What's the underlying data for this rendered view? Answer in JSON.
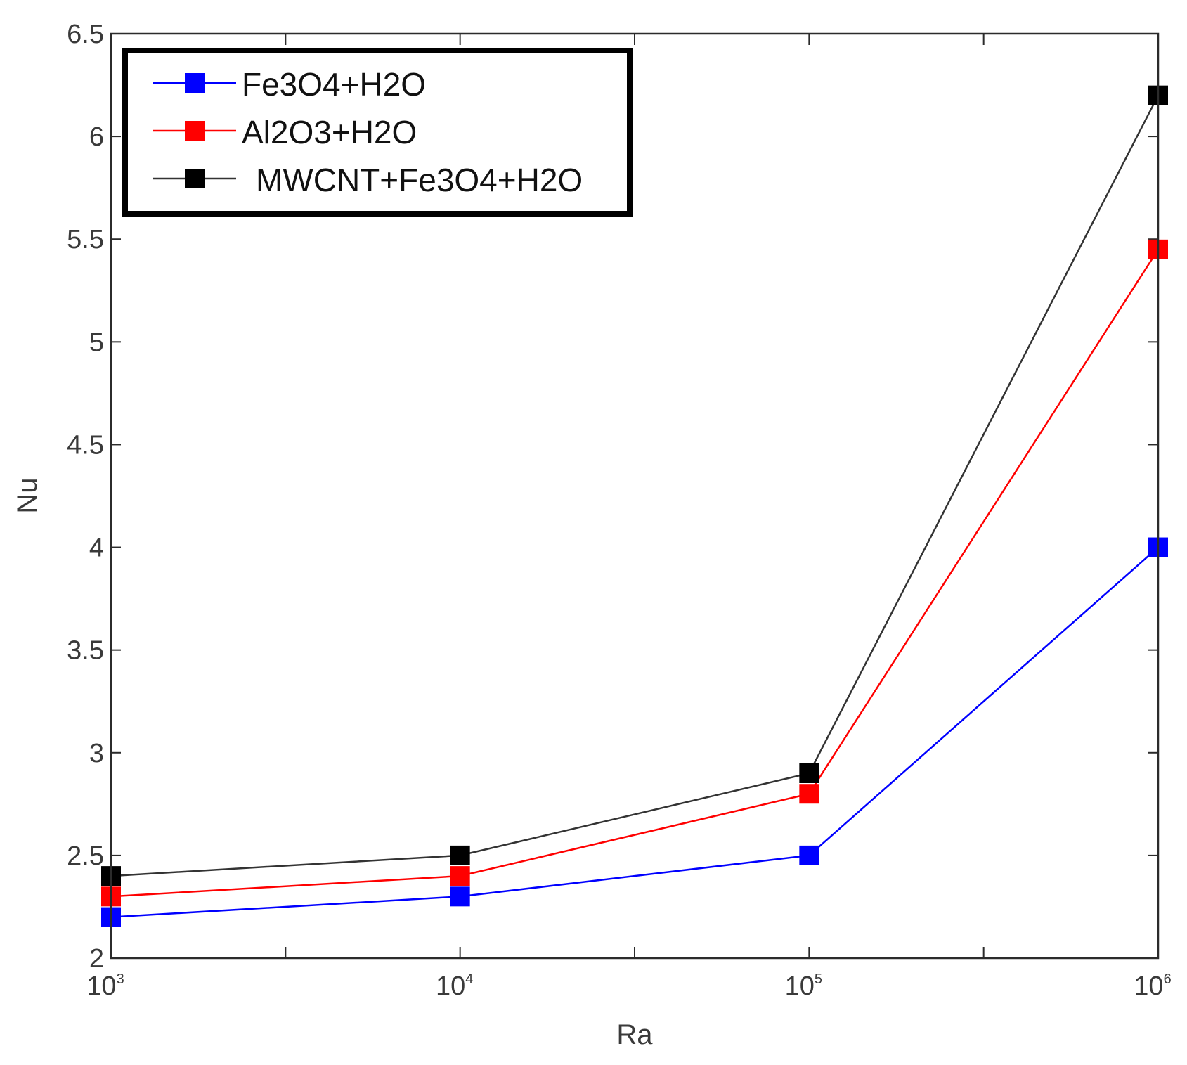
{
  "chart_data": {
    "type": "line",
    "xlabel": "Ra",
    "ylabel": "Nu",
    "x": [
      1000,
      10000,
      100000,
      1000000
    ],
    "x_tick_labels": [
      {
        "base": "10",
        "exp": "3"
      },
      {
        "base": "10",
        "exp": "4"
      },
      {
        "base": "10",
        "exp": "5"
      },
      {
        "base": "10",
        "exp": "6"
      }
    ],
    "y_ticks": [
      "2",
      "2.5",
      "3",
      "3.5",
      "4",
      "4.5",
      "5",
      "5.5",
      "6",
      "6.5"
    ],
    "ylim": [
      2,
      6.5
    ],
    "x_scale": "log",
    "grid": false,
    "legend_position": "top-left",
    "series": [
      {
        "name": "Fe3O4+H2O",
        "color": "#0000ff",
        "values": [
          2.2,
          2.3,
          2.5,
          4.0
        ]
      },
      {
        "name": "Al2O3+H2O",
        "color": "#ff0000",
        "values": [
          2.3,
          2.4,
          2.8,
          5.45
        ]
      },
      {
        "name": "MWCNT+Fe3O4+H2O",
        "color": "#000000",
        "line_color": "#333333",
        "values": [
          2.4,
          2.5,
          2.9,
          6.2
        ]
      }
    ]
  }
}
